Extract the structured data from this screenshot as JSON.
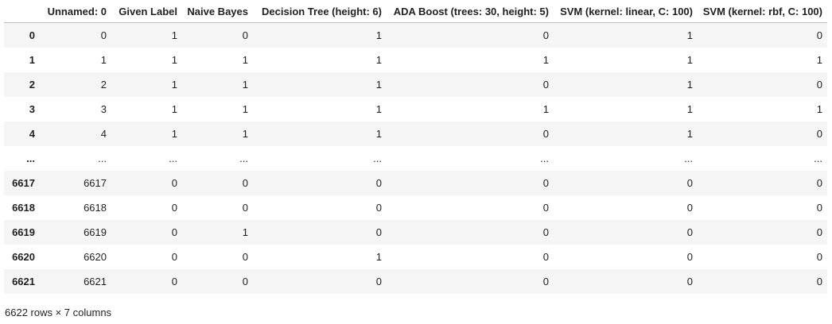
{
  "table": {
    "columns": [
      "",
      "Unnamed: 0",
      "Given Label",
      "Naive Bayes",
      "Decision Tree (height: 6)",
      "ADA Boost (trees: 30, height: 5)",
      "SVM (kernel: linear, C: 100)",
      "SVM (kernel: rbf, C: 100)"
    ],
    "rows": [
      [
        "0",
        "0",
        "1",
        "0",
        "1",
        "0",
        "1",
        "0"
      ],
      [
        "1",
        "1",
        "1",
        "1",
        "1",
        "1",
        "1",
        "1"
      ],
      [
        "2",
        "2",
        "1",
        "1",
        "1",
        "0",
        "1",
        "0"
      ],
      [
        "3",
        "3",
        "1",
        "1",
        "1",
        "1",
        "1",
        "1"
      ],
      [
        "4",
        "4",
        "1",
        "1",
        "1",
        "0",
        "1",
        "0"
      ],
      [
        "...",
        "...",
        "...",
        "...",
        "...",
        "...",
        "...",
        "..."
      ],
      [
        "6617",
        "6617",
        "0",
        "0",
        "0",
        "0",
        "0",
        "0"
      ],
      [
        "6618",
        "6618",
        "0",
        "0",
        "0",
        "0",
        "0",
        "0"
      ],
      [
        "6619",
        "6619",
        "0",
        "1",
        "0",
        "0",
        "0",
        "0"
      ],
      [
        "6620",
        "6620",
        "0",
        "0",
        "1",
        "0",
        "0",
        "0"
      ],
      [
        "6621",
        "6621",
        "0",
        "0",
        "0",
        "0",
        "0",
        "0"
      ]
    ]
  },
  "caption": "6622 rows × 7 columns"
}
